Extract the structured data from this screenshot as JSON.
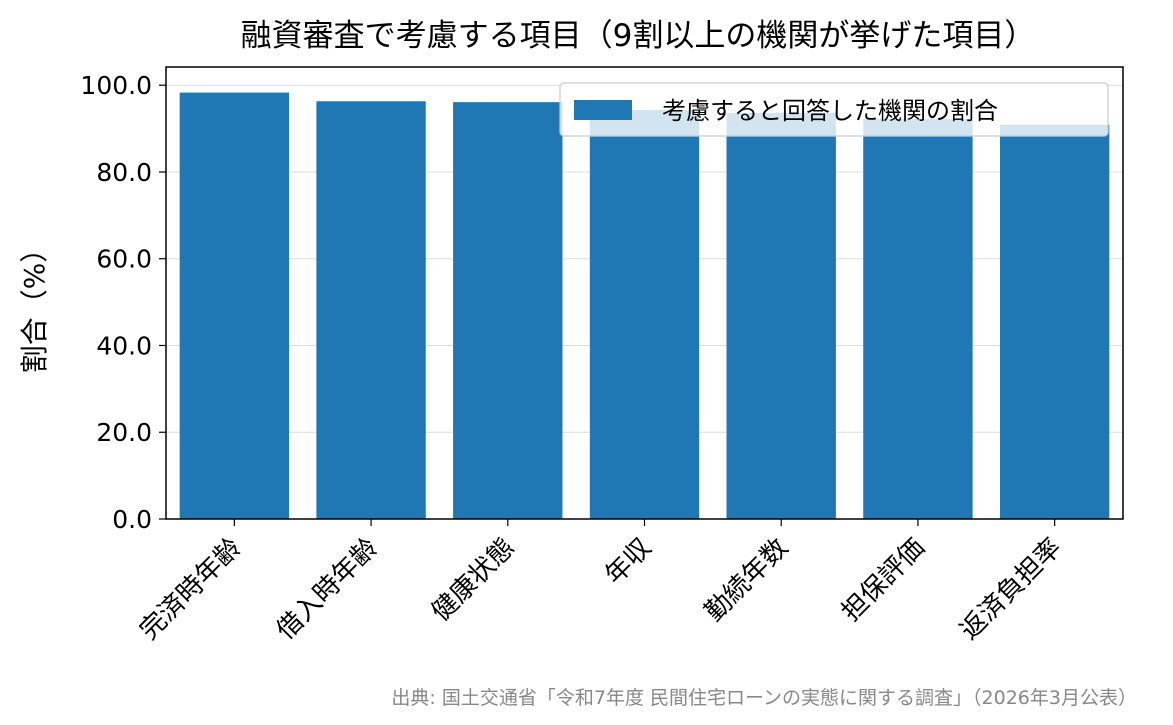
{
  "chart_data": {
    "type": "bar",
    "title": "融資審査で考慮する項目（9割以上の機関が挙げた項目）",
    "xlabel": "",
    "ylabel": "割合（%）",
    "categories": [
      "完済時年齢",
      "借入時年齢",
      "健康状態",
      "年収",
      "勤続年数",
      "担保評価",
      "返済負担率"
    ],
    "series": [
      {
        "name": "考慮すると回答した機関の割合",
        "values": [
          98.3,
          96.3,
          96.1,
          94.3,
          93.6,
          92.2,
          90.9
        ],
        "color": "#1f77b4"
      }
    ],
    "ylim": [
      0,
      104.2
    ],
    "yticks": [
      0,
      20,
      40,
      60,
      80,
      100
    ],
    "ytick_labels": [
      "0.0",
      "20.0",
      "40.0",
      "60.0",
      "80.0",
      "100.0"
    ],
    "grid": "y",
    "legend_position": "top-right"
  },
  "source_note": "出典: 国土交通省「令和7年度 民間住宅ローンの実態に関する調査」（2026年3月公表）"
}
